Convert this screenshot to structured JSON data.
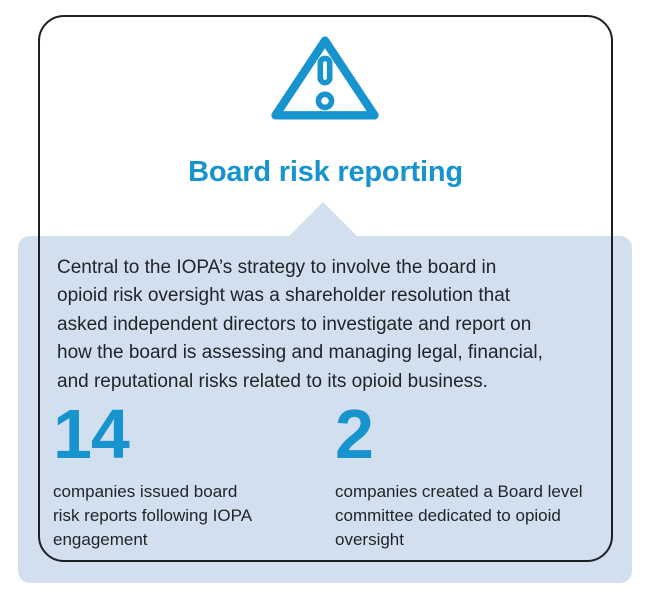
{
  "colors": {
    "accent": "#1793ce",
    "band": "#d2dfef",
    "border": "#1c2025",
    "text": "#212529"
  },
  "header": {
    "icon": "warning-triangle-icon",
    "title": "Board risk reporting"
  },
  "body": {
    "paragraph": "Central to the IOPA’s strategy to involve the board in opioid risk oversight was a shareholder resolution that asked independent directors to investigate and report on how the board is assessing and managing legal, financial, and reputational risks related to its opioid business.",
    "paragraph_lines": [
      "Central to the IOPA’s strategy to involve the board in",
      "opioid risk oversight was a shareholder resolution that",
      "asked independent directors to investigate and report on",
      "how the board is assessing and managing legal, financial,",
      "and reputational risks related to its opioid business."
    ]
  },
  "stats": [
    {
      "value": "14",
      "caption": "companies issued board risk reports following IOPA engagement",
      "caption_lines": [
        "companies issued board",
        "risk reports following IOPA",
        "engagement"
      ]
    },
    {
      "value": "2",
      "caption": "companies created a Board level committee dedicated to opioid oversight",
      "caption_lines": [
        "companies created a Board level",
        "committee dedicated to opioid",
        "oversight"
      ]
    }
  ]
}
